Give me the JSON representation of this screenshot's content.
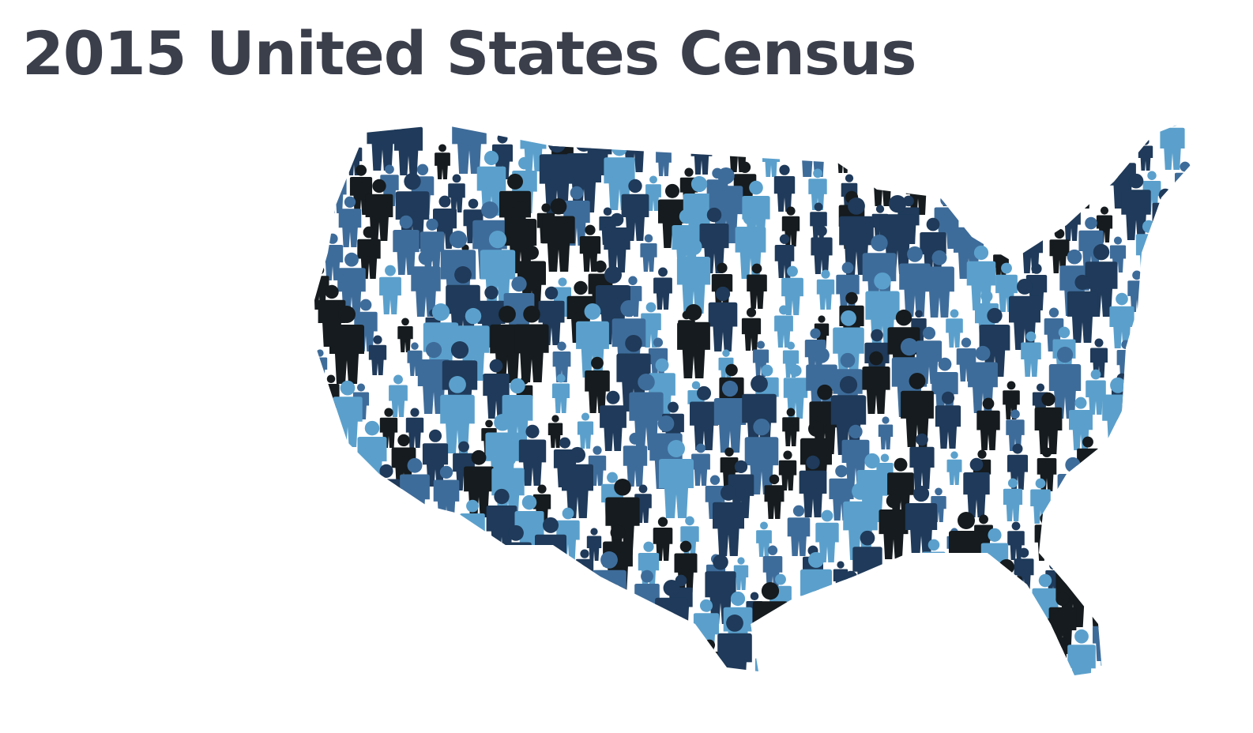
{
  "header": {
    "title": "2015 United States Census"
  },
  "illustration": {
    "subject": "crowd-of-people-forming-usa-map",
    "palette": [
      "#151b1e",
      "#1f3a5a",
      "#3e6c9a",
      "#5ba0cc"
    ]
  }
}
